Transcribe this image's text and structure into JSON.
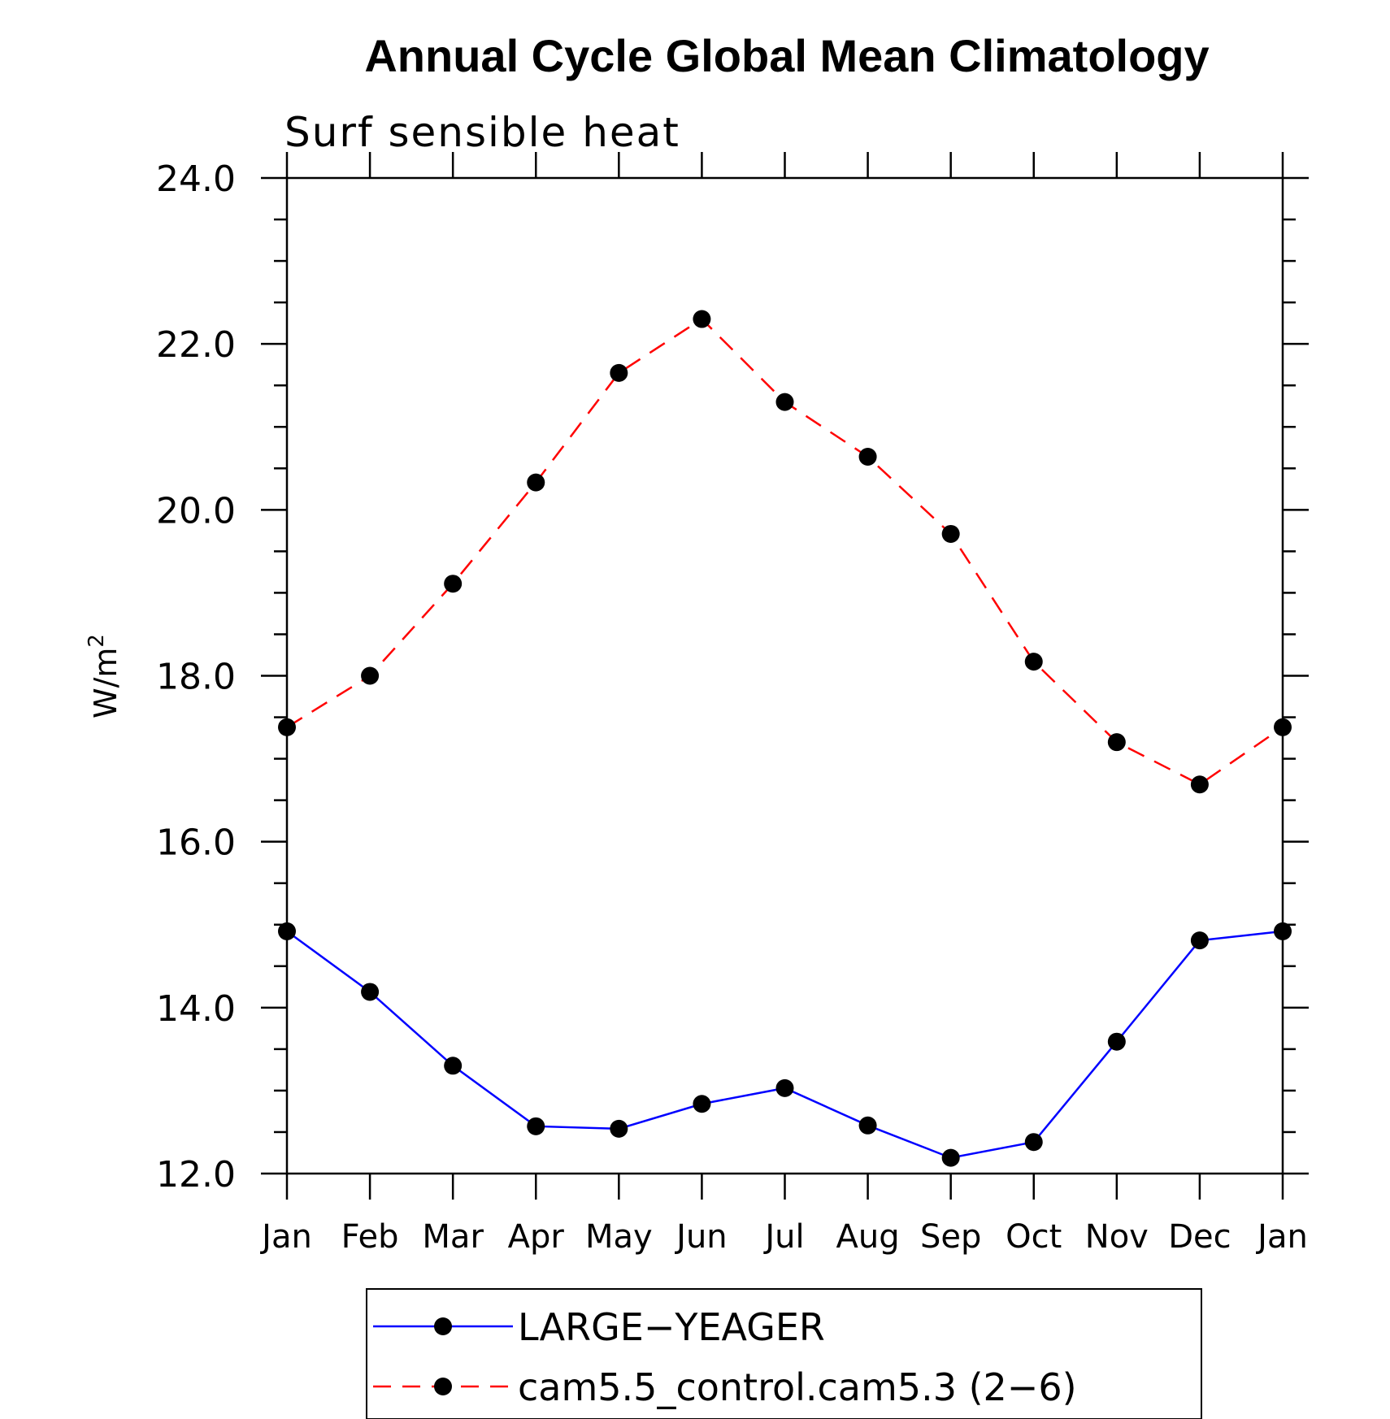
{
  "chart_data": {
    "type": "line",
    "title": "Annual Cycle Global Mean Climatology",
    "subtitle": "Surf sensible heat",
    "xlabel": "",
    "ylabel": "W/m",
    "ylabel_superscript": "2",
    "ylim": [
      12.0,
      24.0
    ],
    "y_major_ticks": [
      "12.0",
      "14.0",
      "16.0",
      "18.0",
      "20.0",
      "22.0",
      "24.0"
    ],
    "y_major_values": [
      12,
      14,
      16,
      18,
      20,
      22,
      24
    ],
    "y_minor_step": 0.5,
    "categories": [
      "Jan",
      "Feb",
      "Mar",
      "Apr",
      "May",
      "Jun",
      "Jul",
      "Aug",
      "Sep",
      "Oct",
      "Nov",
      "Dec",
      "Jan"
    ],
    "grid": false,
    "legend_position": "bottom",
    "series": [
      {
        "name": "LARGE−YEAGER",
        "color": "#0000ff",
        "dash": "solid",
        "marker": "filled-circle",
        "values": [
          14.92,
          14.19,
          13.3,
          12.57,
          12.54,
          12.84,
          13.03,
          12.58,
          12.19,
          12.38,
          13.59,
          14.81,
          14.92
        ]
      },
      {
        "name": "cam5.5_control.cam5.3 (2−6)",
        "color": "#ff0000",
        "dash": "dashed",
        "marker": "filled-circle",
        "values": [
          17.38,
          18.0,
          19.11,
          20.33,
          21.65,
          22.3,
          21.3,
          20.64,
          19.71,
          18.17,
          17.2,
          16.69,
          17.38
        ]
      }
    ]
  }
}
